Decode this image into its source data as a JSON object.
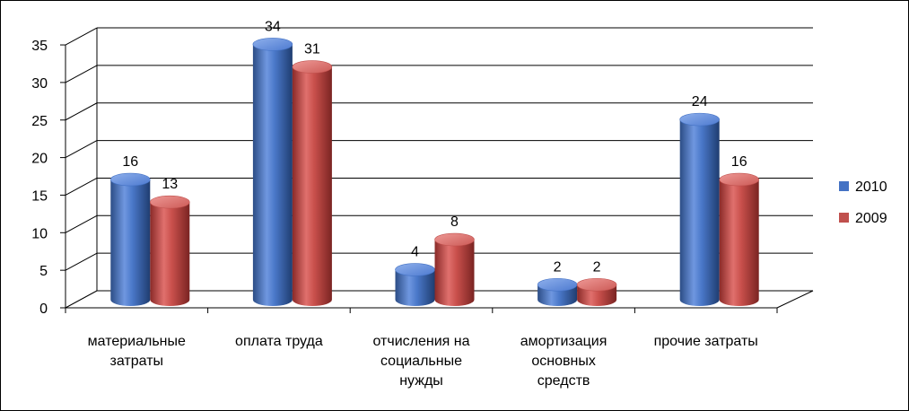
{
  "chart_data": {
    "type": "bar",
    "categories": [
      [
        "материальные",
        "затраты"
      ],
      [
        "оплата труда"
      ],
      [
        "отчисления на",
        "социальные",
        "нужды"
      ],
      [
        "амортизация",
        "основных",
        "средств"
      ],
      [
        "прочие затраты"
      ]
    ],
    "series": [
      {
        "name": "2010",
        "values": [
          16,
          34,
          4,
          2,
          24
        ],
        "color": "#4472C4"
      },
      {
        "name": "2009",
        "values": [
          13,
          31,
          8,
          2,
          16
        ],
        "color": "#C0504D"
      }
    ],
    "yticks": [
      "0",
      "5",
      "10",
      "15",
      "20",
      "25",
      "30",
      "35"
    ],
    "ylim": [
      0,
      35
    ],
    "grid": true,
    "legend": "right",
    "style": "3d-cylinder"
  }
}
